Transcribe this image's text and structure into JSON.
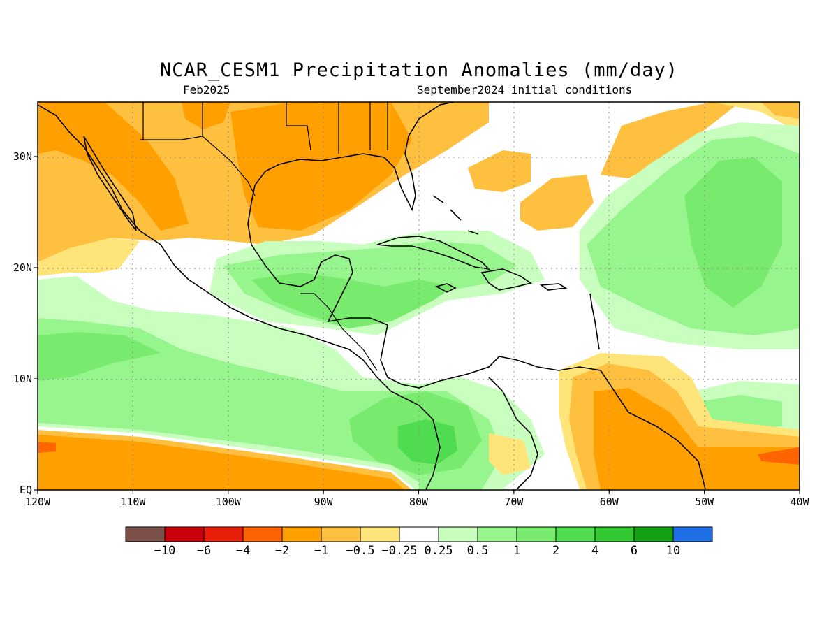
{
  "title": "NCAR_CESM1 Precipitation Anomalies (mm/day)",
  "subtitle_left": "Feb2025",
  "subtitle_right": "September2024 initial conditions",
  "lon_ticks": [
    "120W",
    "110W",
    "100W",
    "90W",
    "80W",
    "70W",
    "60W",
    "50W",
    "40W"
  ],
  "lat_ticks": [
    "EQ",
    "10N",
    "20N",
    "30N"
  ],
  "colorbar": {
    "colors": [
      "#7a5048",
      "#c8000a",
      "#e61e0a",
      "#ff6400",
      "#ffa000",
      "#ffc040",
      "#ffe47a",
      "#ffffff",
      "#c8ffbe",
      "#96f58c",
      "#78eb6e",
      "#50dc50",
      "#32c832",
      "#14a014",
      "#1e6ee6"
    ],
    "labels": [
      "−10",
      "−6",
      "−4",
      "−2",
      "−1",
      "−0.5",
      "−0.25",
      "0.25",
      "0.5",
      "1",
      "2",
      "4",
      "6",
      "10"
    ]
  },
  "colors": {
    "orange_dark": "#ffa000",
    "orange": "#ffc040",
    "yellow": "#ffe47a",
    "red_orange": "#ff6400",
    "green_pale": "#c8ffbe",
    "green_light": "#96f58c",
    "green": "#78eb6e",
    "green_mid": "#50dc50"
  }
}
